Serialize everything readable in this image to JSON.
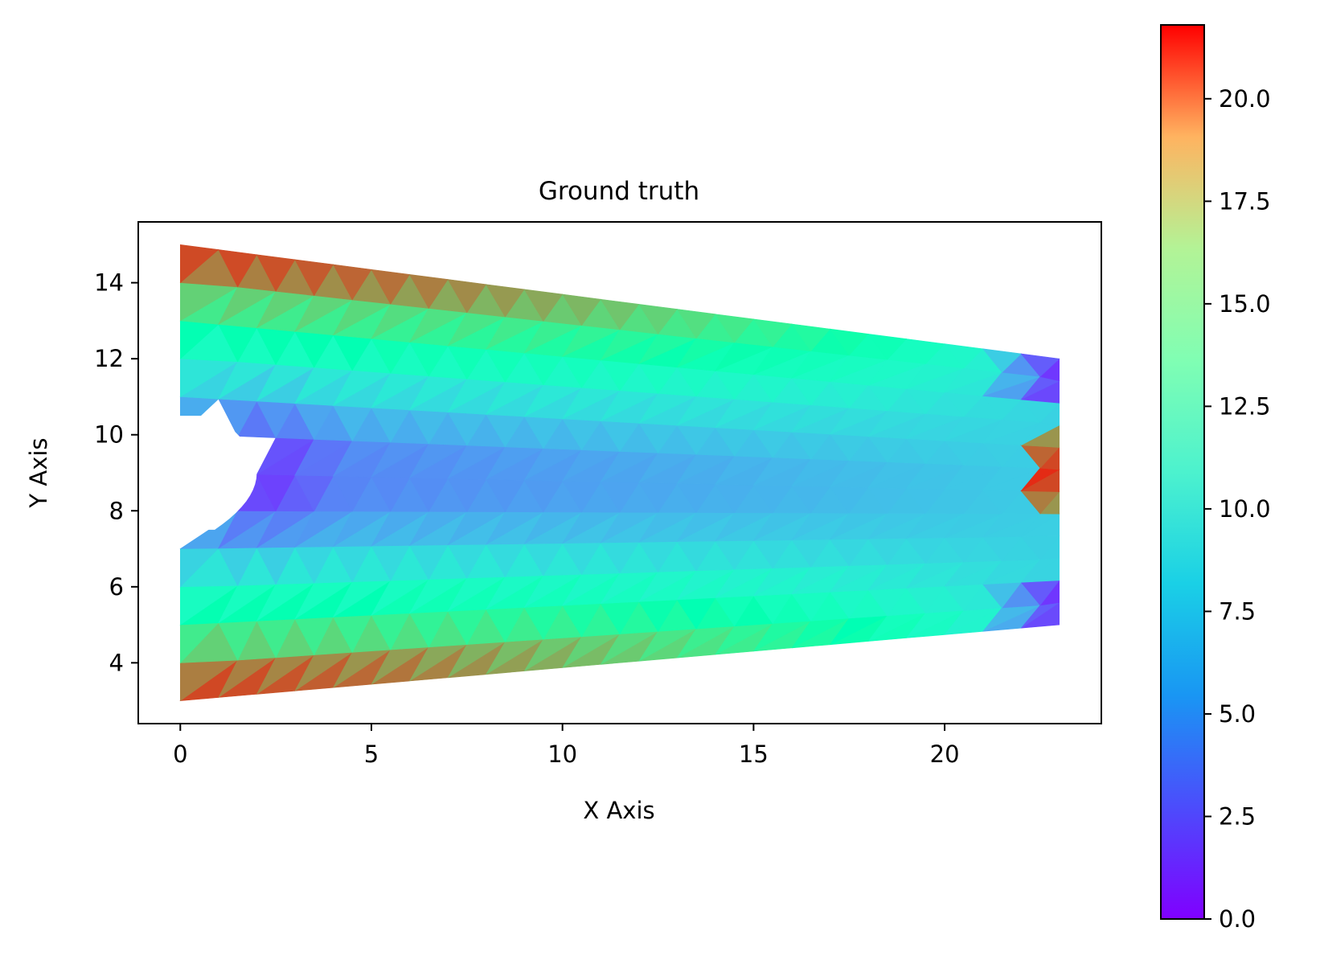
{
  "chart_data": {
    "type": "heatmap",
    "subtype": "triangulated-mesh-field",
    "title": "Ground truth",
    "xlabel": "X Axis",
    "ylabel": "Y Axis",
    "xlim": [
      -1.1,
      24.1
    ],
    "ylim": [
      2.4,
      15.6
    ],
    "xticks": [
      0,
      5,
      10,
      15,
      20
    ],
    "xtick_labels": [
      "0",
      "5",
      "10",
      "15",
      "20"
    ],
    "yticks": [
      4,
      6,
      8,
      10,
      12,
      14
    ],
    "ytick_labels": [
      "4",
      "6",
      "8",
      "10",
      "12",
      "14"
    ],
    "grid": false,
    "colormap": "rainbow",
    "colorbar": {
      "min": 0.0,
      "max": 21.8,
      "ticks": [
        0.0,
        2.5,
        5.0,
        7.5,
        10.0,
        12.5,
        15.0,
        17.5,
        20.0
      ],
      "tick_labels": [
        "0.0",
        "2.5",
        "5.0",
        "7.5",
        "10.0",
        "12.5",
        "15.0",
        "17.5",
        "20.0"
      ]
    },
    "domain": {
      "left_x": 0,
      "right_x": 23,
      "left_y_range": [
        3,
        15
      ],
      "right_y_range": [
        5,
        12
      ],
      "notch": {
        "y_range": [
          7.5,
          10.5
        ],
        "tip_x": 2.0,
        "tip_y": 9.0
      }
    },
    "field_profile": {
      "description_values_at_sample_points": [
        {
          "x": 0.3,
          "y": 14.8,
          "value": 21.5
        },
        {
          "x": 5,
          "y": 14.0,
          "value": 20.0
        },
        {
          "x": 10,
          "y": 13.3,
          "value": 17.5
        },
        {
          "x": 15,
          "y": 12.8,
          "value": 14.5
        },
        {
          "x": 20,
          "y": 12.2,
          "value": 8.5
        },
        {
          "x": 22.8,
          "y": 11.8,
          "value": 1.0
        },
        {
          "x": 2.2,
          "y": 9.0,
          "value": 1.0
        },
        {
          "x": 10,
          "y": 9.0,
          "value": 3.5
        },
        {
          "x": 20,
          "y": 9.0,
          "value": 6.5
        },
        {
          "x": 22.8,
          "y": 9.4,
          "value": 21.0
        },
        {
          "x": 22.8,
          "y": 8.6,
          "value": 17.0
        },
        {
          "x": 0.3,
          "y": 3.2,
          "value": 21.5
        },
        {
          "x": 10,
          "y": 4.4,
          "value": 18.0
        },
        {
          "x": 20,
          "y": 4.9,
          "value": 4.5
        },
        {
          "x": 22.8,
          "y": 5.2,
          "value": 0.8
        }
      ]
    }
  }
}
